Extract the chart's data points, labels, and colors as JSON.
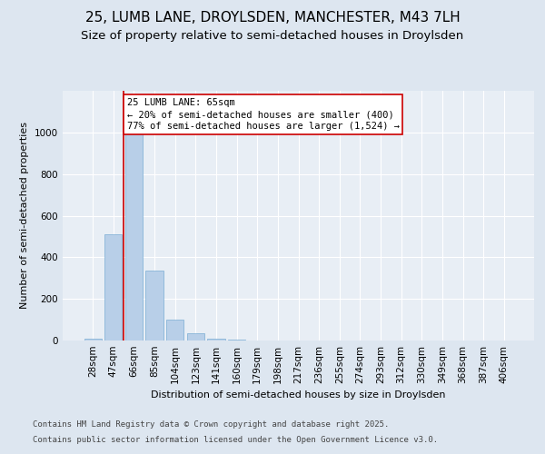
{
  "title_line1": "25, LUMB LANE, DROYLSDEN, MANCHESTER, M43 7LH",
  "title_line2": "Size of property relative to semi-detached houses in Droylsden",
  "xlabel": "Distribution of semi-detached houses by size in Droylsden",
  "ylabel": "Number of semi-detached properties",
  "categories": [
    "28sqm",
    "47sqm",
    "66sqm",
    "85sqm",
    "104sqm",
    "123sqm",
    "141sqm",
    "160sqm",
    "179sqm",
    "198sqm",
    "217sqm",
    "236sqm",
    "255sqm",
    "274sqm",
    "293sqm",
    "312sqm",
    "330sqm",
    "349sqm",
    "368sqm",
    "387sqm",
    "406sqm"
  ],
  "values": [
    10,
    510,
    1000,
    335,
    100,
    35,
    10,
    5,
    0,
    0,
    0,
    0,
    0,
    0,
    0,
    0,
    0,
    0,
    0,
    0,
    0
  ],
  "bar_color": "#b8cfe8",
  "bar_edge_color": "#7aadd4",
  "vline_color": "#cc0000",
  "annotation_text": "25 LUMB LANE: 65sqm\n← 20% of semi-detached houses are smaller (400)\n77% of semi-detached houses are larger (1,524) →",
  "annotation_box_color": "#ffffff",
  "annotation_box_edge_color": "#cc0000",
  "ylim": [
    0,
    1200
  ],
  "yticks": [
    0,
    200,
    400,
    600,
    800,
    1000
  ],
  "background_color": "#dde6f0",
  "plot_area_color": "#e8eef5",
  "footer_line1": "Contains HM Land Registry data © Crown copyright and database right 2025.",
  "footer_line2": "Contains public sector information licensed under the Open Government Licence v3.0.",
  "title_fontsize": 11,
  "subtitle_fontsize": 9.5,
  "annotation_fontsize": 7.5,
  "footer_fontsize": 6.5,
  "axis_label_fontsize": 8,
  "tick_fontsize": 7.5
}
